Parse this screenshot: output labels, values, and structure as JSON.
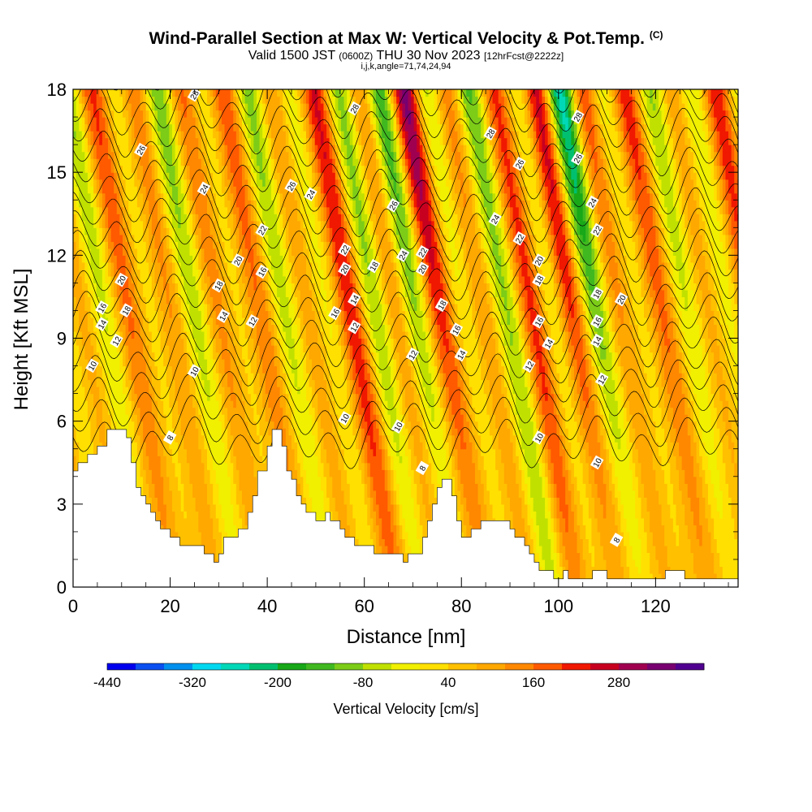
{
  "header": {
    "title": "Wind-Parallel Section at Max W: Vertical Velocity & Pot.Temp.",
    "copyright": "(C)",
    "valid_prefix": "Valid 1500 JST",
    "valid_zulu": "(0600Z)",
    "valid_date": "THU 30 Nov 2023",
    "forecast": "[12hrFcst@2222z]",
    "indices": "i,j,k,angle=71,74,24,94"
  },
  "chart_data": {
    "type": "heatmap",
    "title": "Wind-Parallel Section at Max W: Vertical Velocity & Pot.Temp.",
    "xlabel": "Distance [nm]",
    "ylabel": "Height [Kft MSL]",
    "xlim": [
      0,
      137
    ],
    "ylim": [
      0,
      18
    ],
    "x_ticks": [
      "0",
      "20",
      "40",
      "60",
      "80",
      "100",
      "120"
    ],
    "y_ticks": [
      "0",
      "3",
      "6",
      "9",
      "12",
      "15",
      "18"
    ],
    "colorbar": {
      "label": "Vertical Velocity [cm/s]",
      "tick_labels": [
        "-440",
        "-320",
        "-200",
        "-80",
        "40",
        "160",
        "280"
      ],
      "bins": [
        -440,
        -400,
        -360,
        -320,
        -280,
        -240,
        -200,
        -160,
        -120,
        -80,
        -40,
        0,
        40,
        80,
        120,
        160,
        200,
        240,
        280,
        320,
        360
      ],
      "colors": [
        "#0000ee",
        "#0a4ff0",
        "#0090ee",
        "#00d8f0",
        "#00d8b8",
        "#00c070",
        "#18a818",
        "#40b820",
        "#7ccc18",
        "#c0e000",
        "#f0f000",
        "#ffe000",
        "#ffc000",
        "#ffa800",
        "#ff8800",
        "#ff5a00",
        "#f01800",
        "#c80020",
        "#a00050",
        "#780070",
        "#500090"
      ]
    },
    "terrain": [
      [
        0,
        4.2
      ],
      [
        1,
        4.2
      ],
      [
        1,
        4.5
      ],
      [
        3,
        4.5
      ],
      [
        3,
        4.8
      ],
      [
        5,
        4.8
      ],
      [
        5,
        5.1
      ],
      [
        7,
        5.1
      ],
      [
        7,
        5.7
      ],
      [
        11,
        5.7
      ],
      [
        11,
        5.4
      ],
      [
        12,
        5.4
      ],
      [
        12,
        4.5
      ],
      [
        13,
        4.5
      ],
      [
        13,
        3.6
      ],
      [
        14,
        3.6
      ],
      [
        14,
        3.3
      ],
      [
        15,
        3.3
      ],
      [
        15,
        3.0
      ],
      [
        16,
        3.0
      ],
      [
        16,
        2.7
      ],
      [
        17,
        2.7
      ],
      [
        17,
        2.4
      ],
      [
        18,
        2.4
      ],
      [
        18,
        2.1
      ],
      [
        20,
        2.1
      ],
      [
        20,
        1.8
      ],
      [
        22,
        1.8
      ],
      [
        22,
        1.5
      ],
      [
        27,
        1.5
      ],
      [
        27,
        1.2
      ],
      [
        29,
        1.2
      ],
      [
        29,
        0.9
      ],
      [
        30,
        0.9
      ],
      [
        30,
        1.2
      ],
      [
        31,
        1.2
      ],
      [
        31,
        1.8
      ],
      [
        34,
        1.8
      ],
      [
        34,
        2.1
      ],
      [
        36,
        2.1
      ],
      [
        36,
        2.7
      ],
      [
        37,
        2.7
      ],
      [
        37,
        3.3
      ],
      [
        38,
        3.3
      ],
      [
        38,
        4.2
      ],
      [
        40,
        4.2
      ],
      [
        40,
        5.1
      ],
      [
        41,
        5.1
      ],
      [
        41,
        5.7
      ],
      [
        43,
        5.7
      ],
      [
        43,
        5.1
      ],
      [
        44,
        5.1
      ],
      [
        44,
        4.2
      ],
      [
        45,
        4.2
      ],
      [
        45,
        3.9
      ],
      [
        46,
        3.9
      ],
      [
        46,
        3.3
      ],
      [
        47,
        3.3
      ],
      [
        47,
        3.0
      ],
      [
        48,
        3.0
      ],
      [
        48,
        2.7
      ],
      [
        50,
        2.7
      ],
      [
        50,
        2.4
      ],
      [
        52,
        2.4
      ],
      [
        52,
        2.7
      ],
      [
        53,
        2.7
      ],
      [
        53,
        2.4
      ],
      [
        55,
        2.4
      ],
      [
        55,
        2.1
      ],
      [
        56,
        2.1
      ],
      [
        56,
        1.8
      ],
      [
        58,
        1.8
      ],
      [
        58,
        1.5
      ],
      [
        62,
        1.5
      ],
      [
        62,
        1.2
      ],
      [
        68,
        1.2
      ],
      [
        68,
        0.9
      ],
      [
        69,
        0.9
      ],
      [
        69,
        1.2
      ],
      [
        72,
        1.2
      ],
      [
        72,
        1.8
      ],
      [
        73,
        1.8
      ],
      [
        73,
        2.4
      ],
      [
        74,
        2.4
      ],
      [
        74,
        3.0
      ],
      [
        75,
        3.0
      ],
      [
        75,
        3.6
      ],
      [
        76,
        3.6
      ],
      [
        76,
        3.9
      ],
      [
        78,
        3.9
      ],
      [
        78,
        3.3
      ],
      [
        79,
        3.3
      ],
      [
        79,
        2.4
      ],
      [
        80,
        2.4
      ],
      [
        80,
        1.8
      ],
      [
        82,
        1.8
      ],
      [
        82,
        2.1
      ],
      [
        84,
        2.1
      ],
      [
        84,
        2.4
      ],
      [
        90,
        2.4
      ],
      [
        90,
        2.1
      ],
      [
        91,
        2.1
      ],
      [
        91,
        1.8
      ],
      [
        93,
        1.8
      ],
      [
        93,
        1.5
      ],
      [
        94,
        1.5
      ],
      [
        94,
        1.2
      ],
      [
        95,
        1.2
      ],
      [
        95,
        0.9
      ],
      [
        96,
        0.9
      ],
      [
        96,
        0.6
      ],
      [
        99,
        0.6
      ],
      [
        99,
        0.3
      ],
      [
        101,
        0.3
      ],
      [
        101,
        0.6
      ],
      [
        102,
        0.6
      ],
      [
        102,
        0.3
      ],
      [
        107,
        0.3
      ],
      [
        107,
        0.6
      ],
      [
        110,
        0.6
      ],
      [
        110,
        0.3
      ],
      [
        122,
        0.3
      ],
      [
        122,
        0.6
      ],
      [
        126,
        0.6
      ],
      [
        126,
        0.3
      ],
      [
        137,
        0.3
      ]
    ],
    "theta_labels": [
      {
        "text": "28",
        "x": 25,
        "y": 17.8
      },
      {
        "text": "26",
        "x": 14,
        "y": 15.8
      },
      {
        "text": "24",
        "x": 27,
        "y": 14.4
      },
      {
        "text": "22",
        "x": 39,
        "y": 12.9
      },
      {
        "text": "20",
        "x": 34,
        "y": 11.8
      },
      {
        "text": "20",
        "x": 10,
        "y": 11.1
      },
      {
        "text": "18",
        "x": 30,
        "y": 10.9
      },
      {
        "text": "16",
        "x": 6,
        "y": 10.1
      },
      {
        "text": "18",
        "x": 11,
        "y": 10.0
      },
      {
        "text": "14",
        "x": 31,
        "y": 9.8
      },
      {
        "text": "14",
        "x": 6,
        "y": 9.5
      },
      {
        "text": "12",
        "x": 37,
        "y": 9.6
      },
      {
        "text": "16",
        "x": 39,
        "y": 11.4
      },
      {
        "text": "12",
        "x": 9,
        "y": 8.9
      },
      {
        "text": "10",
        "x": 4,
        "y": 8.0
      },
      {
        "text": "10",
        "x": 25,
        "y": 7.8
      },
      {
        "text": "8",
        "x": 20,
        "y": 5.4
      },
      {
        "text": "26",
        "x": 45,
        "y": 14.5
      },
      {
        "text": "24",
        "x": 49,
        "y": 14.2
      },
      {
        "text": "22",
        "x": 56,
        "y": 12.2
      },
      {
        "text": "20",
        "x": 56,
        "y": 11.5
      },
      {
        "text": "16",
        "x": 54,
        "y": 9.9
      },
      {
        "text": "14",
        "x": 58,
        "y": 10.4
      },
      {
        "text": "12",
        "x": 58,
        "y": 9.4
      },
      {
        "text": "10",
        "x": 56,
        "y": 6.1
      },
      {
        "text": "10",
        "x": 67,
        "y": 5.8
      },
      {
        "text": "28",
        "x": 58,
        "y": 17.3
      },
      {
        "text": "26",
        "x": 66,
        "y": 13.8
      },
      {
        "text": "18",
        "x": 62,
        "y": 11.6
      },
      {
        "text": "24",
        "x": 68,
        "y": 12.0
      },
      {
        "text": "22",
        "x": 72,
        "y": 12.1
      },
      {
        "text": "20",
        "x": 72,
        "y": 11.5
      },
      {
        "text": "18",
        "x": 76,
        "y": 10.2
      },
      {
        "text": "16",
        "x": 79,
        "y": 9.3
      },
      {
        "text": "14",
        "x": 80,
        "y": 8.4
      },
      {
        "text": "12",
        "x": 70,
        "y": 8.4
      },
      {
        "text": "8",
        "x": 72,
        "y": 4.3
      },
      {
        "text": "28",
        "x": 86,
        "y": 16.4
      },
      {
        "text": "24",
        "x": 87,
        "y": 13.3
      },
      {
        "text": "26",
        "x": 92,
        "y": 15.3
      },
      {
        "text": "22",
        "x": 92,
        "y": 12.6
      },
      {
        "text": "20",
        "x": 96,
        "y": 11.8
      },
      {
        "text": "18",
        "x": 96,
        "y": 11.1
      },
      {
        "text": "16",
        "x": 96,
        "y": 9.6
      },
      {
        "text": "14",
        "x": 98,
        "y": 8.8
      },
      {
        "text": "12",
        "x": 94,
        "y": 8.0
      },
      {
        "text": "10",
        "x": 96,
        "y": 5.4
      },
      {
        "text": "28",
        "x": 104,
        "y": 17.0
      },
      {
        "text": "26",
        "x": 104,
        "y": 15.5
      },
      {
        "text": "24",
        "x": 107,
        "y": 13.9
      },
      {
        "text": "22",
        "x": 108,
        "y": 12.9
      },
      {
        "text": "18",
        "x": 108,
        "y": 10.6
      },
      {
        "text": "16",
        "x": 108,
        "y": 9.6
      },
      {
        "text": "14",
        "x": 108,
        "y": 8.9
      },
      {
        "text": "12",
        "x": 109,
        "y": 7.5
      },
      {
        "text": "10",
        "x": 108,
        "y": 4.5
      },
      {
        "text": "20",
        "x": 113,
        "y": 10.4
      },
      {
        "text": "8",
        "x": 112,
        "y": 1.7
      }
    ]
  }
}
